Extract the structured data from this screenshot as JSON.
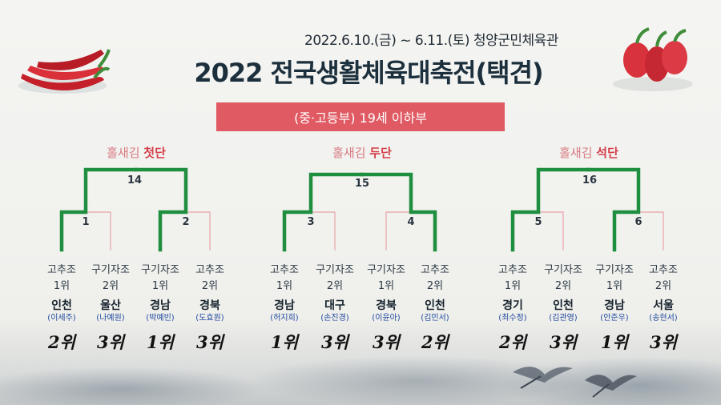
{
  "header": {
    "date_venue": "2022.6.10.(금) ~ 6.11.(토)  청양군민체육관",
    "title": "2022 전국생활체육대축전(택견)"
  },
  "division": "(중·고등부) 19세 이하부",
  "colors": {
    "accent": "#e05a63",
    "winner_line": "#1f8f3f",
    "loser_line": "#e8a3a8"
  },
  "groups": [
    {
      "label_prefix": "홀새김 ",
      "label_dan": "첫단",
      "final_match": "14",
      "semi_matches": [
        "1",
        "2"
      ],
      "players": [
        {
          "team": "고추조",
          "rank": "1위",
          "region": "인천",
          "name": "(이세주)",
          "result": "2위"
        },
        {
          "team": "구기자조",
          "rank": "2위",
          "region": "울산",
          "name": "(나예원)",
          "result": "3위"
        },
        {
          "team": "구기자조",
          "rank": "1위",
          "region": "경남",
          "name": "(박예빈)",
          "result": "1위"
        },
        {
          "team": "고추조",
          "rank": "2위",
          "region": "경북",
          "name": "(도효원)",
          "result": "3위"
        }
      ]
    },
    {
      "label_prefix": "홀새김 ",
      "label_dan": "두단",
      "final_match": "15",
      "semi_matches": [
        "3",
        "4"
      ],
      "players": [
        {
          "team": "고추조",
          "rank": "1위",
          "region": "경남",
          "name": "(허지희)",
          "result": "1위"
        },
        {
          "team": "구기자조",
          "rank": "2위",
          "region": "대구",
          "name": "(손진경)",
          "result": "3위"
        },
        {
          "team": "구기자조",
          "rank": "1위",
          "region": "경북",
          "name": "(이윤아)",
          "result": "3위"
        },
        {
          "team": "고추조",
          "rank": "2위",
          "region": "인천",
          "name": "(김민서)",
          "result": "2위"
        }
      ]
    },
    {
      "label_prefix": "홀새김 ",
      "label_dan": "석단",
      "final_match": "16",
      "semi_matches": [
        "5",
        "6"
      ],
      "players": [
        {
          "team": "고추조",
          "rank": "1위",
          "region": "경기",
          "name": "(최수정)",
          "result": "2위"
        },
        {
          "team": "구기자조",
          "rank": "2위",
          "region": "인천",
          "name": "(김관영)",
          "result": "3위"
        },
        {
          "team": "구기자조",
          "rank": "1위",
          "region": "경남",
          "name": "(안준우)",
          "result": "1위"
        },
        {
          "team": "고추조",
          "rank": "2위",
          "region": "서울",
          "name": "(송현서)",
          "result": "3위"
        }
      ]
    }
  ]
}
